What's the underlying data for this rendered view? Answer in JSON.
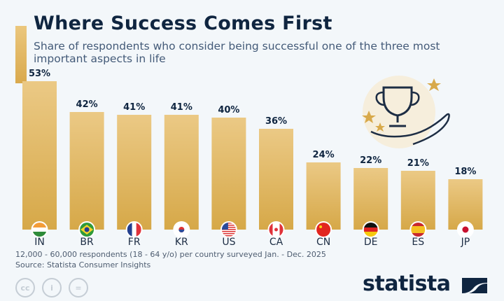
{
  "header": {
    "title": "Where Success Comes First",
    "subtitle": "Share of respondents who consider being successful one of the three most important aspects in life"
  },
  "chart_data": {
    "type": "bar",
    "categories": [
      "IN",
      "BR",
      "FR",
      "KR",
      "US",
      "CA",
      "CN",
      "DE",
      "ES",
      "JP"
    ],
    "values": [
      53,
      42,
      41,
      41,
      40,
      36,
      24,
      22,
      21,
      18
    ],
    "labels": [
      "53%",
      "42%",
      "41%",
      "41%",
      "40%",
      "36%",
      "24%",
      "22%",
      "21%",
      "18%"
    ],
    "unit": "%",
    "ylim": [
      0,
      53
    ],
    "grid": false,
    "bar_color_top": "#ebc985",
    "bar_color_bottom": "#d6a848"
  },
  "footer": {
    "note": "12,000 - 60,000 respondents (18 - 64 y/o) per country surveyed Jan. - Dec. 2025",
    "source": "Source: Statista Consumer Insights",
    "license_icons": [
      "cc-icon",
      "attribution-icon",
      "no-derivatives-icon"
    ],
    "logo": "statista"
  }
}
